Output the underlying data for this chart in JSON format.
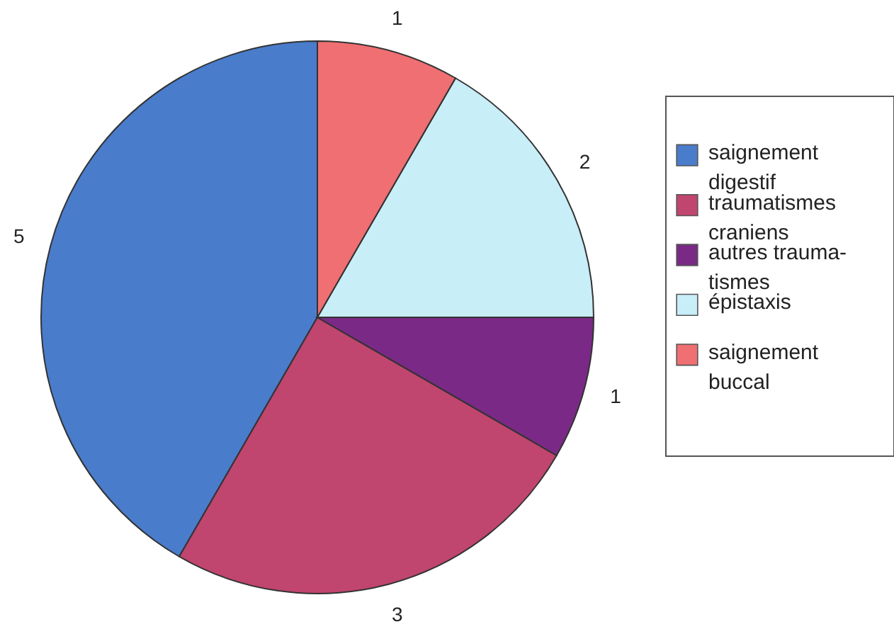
{
  "chart_data": {
    "type": "pie",
    "categories": [
      "saignement\ndigestif",
      "traumatismes\ncraniens",
      "autres trauma-\ntismes",
      "épistaxis",
      "saignement\nbuccal"
    ],
    "values": [
      5,
      3,
      1,
      2,
      1
    ],
    "colors": [
      "#4a7ccc",
      "#c0456f",
      "#7a2a86",
      "#c8eef8",
      "#ef6f72"
    ],
    "data_labels": true,
    "legend": "right"
  }
}
